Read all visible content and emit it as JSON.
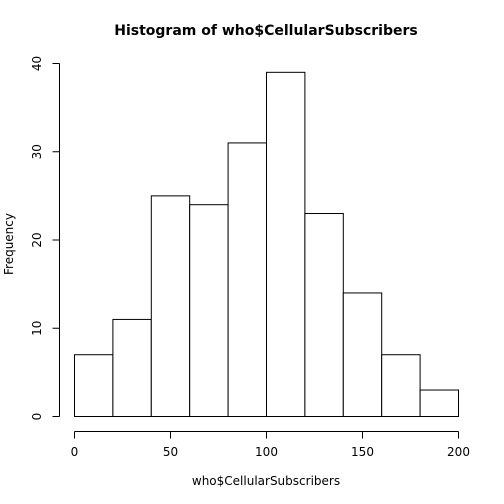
{
  "chart_data": {
    "type": "bar",
    "title": "Histogram of who$CellularSubscribers",
    "xlabel": "who$CellularSubscribers",
    "ylabel": "Frequency",
    "bins": [
      {
        "start": 0,
        "end": 20,
        "count": 7
      },
      {
        "start": 20,
        "end": 40,
        "count": 11
      },
      {
        "start": 40,
        "end": 60,
        "count": 25
      },
      {
        "start": 60,
        "end": 80,
        "count": 24
      },
      {
        "start": 80,
        "end": 100,
        "count": 31
      },
      {
        "start": 100,
        "end": 120,
        "count": 39
      },
      {
        "start": 120,
        "end": 140,
        "count": 23
      },
      {
        "start": 140,
        "end": 160,
        "count": 14
      },
      {
        "start": 160,
        "end": 180,
        "count": 7
      },
      {
        "start": 180,
        "end": 200,
        "count": 3
      }
    ],
    "xlim": [
      0,
      200
    ],
    "ylim": [
      0,
      40
    ],
    "xticks": [
      0,
      50,
      100,
      150,
      200
    ],
    "yticks": [
      0,
      10,
      20,
      30,
      40
    ],
    "grid": false,
    "legend": "none"
  }
}
